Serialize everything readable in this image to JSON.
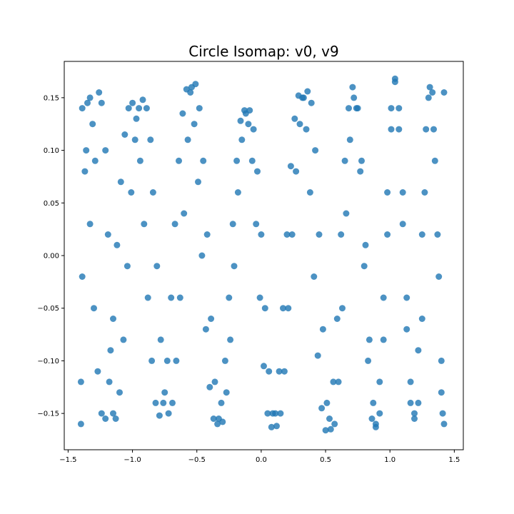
{
  "chart_data": {
    "type": "scatter",
    "title": "Circle Isomap: v0, v9",
    "xlabel": "",
    "ylabel": "",
    "xlim": [
      -1.53,
      1.57
    ],
    "ylim": [
      -0.1845,
      0.1845
    ],
    "x_ticks": [
      -1.5,
      -1.0,
      -0.5,
      0.0,
      0.5,
      1.0,
      1.5
    ],
    "x_tick_labels": [
      "−1.5",
      "−1.0",
      "−0.5",
      "0.0",
      "0.5",
      "1.0",
      "1.5"
    ],
    "y_ticks": [
      0.15,
      0.1,
      0.05,
      0.0,
      -0.05,
      -0.1,
      -0.15
    ],
    "y_tick_labels": [
      "0.15",
      "0.10",
      "0.05",
      "0.00",
      "−0.05",
      "−0.10",
      "−0.15"
    ],
    "grid": false,
    "legend": "none",
    "marker_color": "#1f77b4",
    "series": [
      {
        "x": [
          -1.4,
          -1.4,
          -1.39,
          -1.37,
          -1.35,
          -1.33,
          -1.31,
          -1.29,
          -1.26,
          -1.24,
          -1.21,
          -1.19,
          -1.17,
          -1.15,
          -1.13,
          -1.1,
          -1.07,
          -1.04,
          -1.01,
          -0.98,
          -0.95,
          -0.92,
          -0.89,
          -0.86,
          -0.84,
          -0.81,
          -0.78,
          -0.75,
          -0.72,
          -0.69,
          -0.66,
          -0.63,
          -0.6,
          -0.57,
          -0.54,
          -0.51,
          -0.48,
          -0.45,
          -0.42,
          -0.39,
          -0.36,
          -0.33,
          -0.3,
          -0.27,
          -0.24,
          -0.21,
          -0.18,
          -0.15,
          -0.12,
          -0.09,
          -0.06,
          -0.03,
          0.0,
          0.03,
          0.06,
          0.09,
          0.12,
          0.15,
          0.18,
          0.21,
          0.24,
          0.27,
          0.3,
          0.33,
          0.36,
          0.39,
          0.42,
          0.45,
          0.48,
          0.51,
          0.54,
          0.57,
          0.6,
          0.63,
          0.66,
          0.69,
          0.72,
          0.75,
          0.78,
          0.81,
          0.84,
          0.87,
          0.89,
          0.92,
          0.95,
          0.98,
          1.01,
          1.04,
          1.07,
          1.1,
          1.13,
          1.16,
          1.19,
          1.22,
          1.25,
          1.27,
          1.3,
          1.33,
          1.35,
          1.38,
          1.4,
          1.41,
          1.42
        ],
        "y": [
          -0.16,
          -0.12,
          -0.02,
          0.08,
          0.145,
          0.15,
          0.125,
          0.09,
          0.155,
          0.145,
          0.1,
          0.02,
          -0.09,
          -0.15,
          -0.155,
          -0.13,
          -0.08,
          -0.01,
          0.06,
          0.11,
          0.14,
          0.148,
          0.14,
          0.11,
          0.06,
          -0.01,
          -0.08,
          -0.13,
          -0.15,
          -0.14,
          -0.1,
          -0.04,
          0.04,
          0.11,
          0.16,
          0.163,
          0.14,
          0.09,
          0.02,
          -0.06,
          -0.12,
          -0.155,
          -0.158,
          -0.13,
          -0.08,
          -0.01,
          0.06,
          0.11,
          0.135,
          0.138,
          0.12,
          0.08,
          0.02,
          -0.05,
          -0.11,
          -0.15,
          -0.162,
          -0.15,
          -0.11,
          -0.05,
          0.02,
          0.08,
          0.125,
          0.15,
          0.156,
          0.145,
          0.1,
          0.02,
          -0.07,
          -0.14,
          -0.165,
          -0.16,
          -0.12,
          -0.05,
          0.04,
          0.11,
          0.15,
          0.14,
          0.09,
          0.01,
          -0.08,
          -0.14,
          -0.163,
          -0.15,
          -0.08,
          0.02,
          0.12,
          0.168,
          0.14,
          0.06,
          -0.04,
          -0.12,
          -0.155,
          -0.14,
          -0.06,
          0.06,
          0.15,
          0.155,
          0.09,
          -0.02,
          -0.13,
          -0.15,
          0.155
        ]
      },
      {
        "x": [
          -1.39,
          -1.36,
          -1.33,
          -1.3,
          -1.27,
          -1.24,
          -1.21,
          -1.18,
          -1.15,
          -1.12,
          -1.09,
          -1.06,
          -1.03,
          -1.0,
          -0.97,
          -0.94,
          -0.91,
          -0.88,
          -0.85,
          -0.82,
          -0.79,
          -0.76,
          -0.73,
          -0.7,
          -0.67,
          -0.64,
          -0.61,
          -0.58,
          -0.55,
          -0.52,
          -0.49,
          -0.46,
          -0.43,
          -0.4,
          -0.37,
          -0.34,
          -0.31,
          -0.28,
          -0.25,
          -0.22,
          -0.19,
          -0.16,
          -0.13,
          -0.1,
          -0.07,
          -0.04,
          -0.01,
          0.02,
          0.05,
          0.08,
          0.11,
          0.14,
          0.17,
          0.2,
          0.23,
          0.26,
          0.29,
          0.32,
          0.35,
          0.38,
          0.41,
          0.44,
          0.47,
          0.5,
          0.53,
          0.56,
          0.59,
          0.62,
          0.65,
          0.68,
          0.71,
          0.74,
          0.77,
          0.8,
          0.83,
          0.86,
          0.89,
          0.92,
          0.95,
          0.98,
          1.01,
          1.04,
          1.07,
          1.1,
          1.13,
          1.16,
          1.19,
          1.22,
          1.25,
          1.28,
          1.31,
          1.34,
          1.37,
          1.4,
          1.42
        ],
        "y": [
          0.14,
          0.1,
          0.03,
          -0.05,
          -0.11,
          -0.15,
          -0.155,
          -0.12,
          -0.06,
          0.01,
          0.07,
          0.115,
          0.14,
          0.145,
          0.13,
          0.09,
          0.03,
          -0.04,
          -0.1,
          -0.14,
          -0.152,
          -0.14,
          -0.1,
          -0.04,
          0.03,
          0.09,
          0.135,
          0.158,
          0.155,
          0.125,
          0.07,
          0.0,
          -0.07,
          -0.125,
          -0.155,
          -0.16,
          -0.14,
          -0.1,
          -0.04,
          0.03,
          0.09,
          0.128,
          0.138,
          0.125,
          0.09,
          0.03,
          -0.04,
          -0.105,
          -0.15,
          -0.163,
          -0.15,
          -0.11,
          -0.05,
          0.02,
          0.085,
          0.13,
          0.152,
          0.15,
          0.12,
          0.06,
          -0.02,
          -0.095,
          -0.145,
          -0.166,
          -0.155,
          -0.12,
          -0.06,
          0.02,
          0.09,
          0.14,
          0.16,
          0.14,
          0.08,
          -0.01,
          -0.1,
          -0.155,
          -0.16,
          -0.12,
          -0.04,
          0.06,
          0.14,
          0.165,
          0.12,
          0.03,
          -0.07,
          -0.14,
          -0.15,
          -0.09,
          0.02,
          0.12,
          0.16,
          0.12,
          0.02,
          -0.1,
          -0.16
        ]
      }
    ]
  }
}
